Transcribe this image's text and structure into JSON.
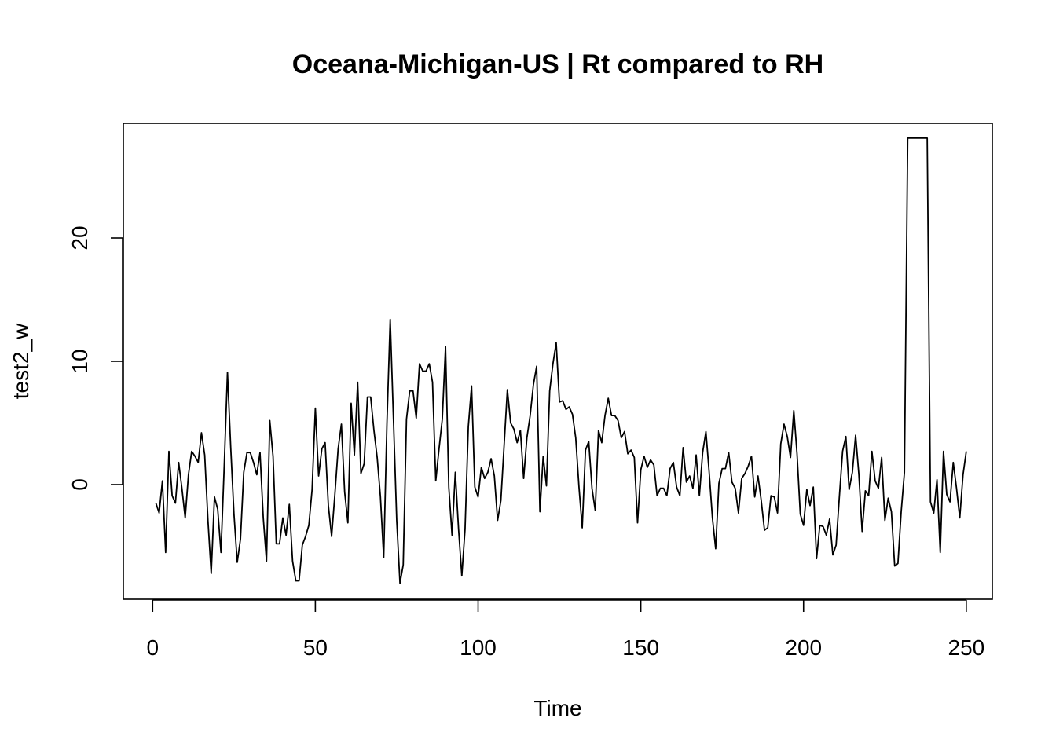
{
  "chart_data": {
    "type": "line",
    "title": "Oceana-Michigan-US | Rt compared to RH",
    "xlabel": "Time",
    "ylabel": "test2_w",
    "xlim": [
      -9,
      258
    ],
    "ylim": [
      -9.3,
      29.3
    ],
    "xticks": [
      0,
      50,
      100,
      150,
      200,
      250
    ],
    "yticks": [
      0,
      10,
      20
    ],
    "grid": false,
    "legend": "none",
    "line_color": "#000000",
    "series": [
      {
        "x_start": 1,
        "values": [
          -1.5,
          -2.3,
          0.3,
          -5.5,
          2.7,
          -0.9,
          -1.5,
          1.8,
          -0.3,
          -2.7,
          0.8,
          2.7,
          2.3,
          1.8,
          4.2,
          2.4,
          -2.9,
          -7.2,
          -1.0,
          -2.0,
          -5.5,
          1.5,
          9.1,
          3.0,
          -2.4,
          -6.3,
          -4.4,
          1.0,
          2.6,
          2.6,
          1.8,
          0.8,
          2.6,
          -2.7,
          -6.2,
          5.2,
          2.3,
          -4.8,
          -4.8,
          -2.7,
          -4.1,
          -1.6,
          -6.2,
          -7.8,
          -7.8,
          -4.9,
          -4.2,
          -3.3,
          -0.4,
          6.2,
          0.7,
          2.9,
          3.4,
          -1.7,
          -4.2,
          -0.8,
          2.9,
          4.9,
          -0.6,
          -3.1,
          6.6,
          2.4,
          8.3,
          0.9,
          1.7,
          7.1,
          7.1,
          4.4,
          2.2,
          -1.0,
          -5.9,
          5.0,
          13.4,
          5.3,
          -2.9,
          -8.0,
          -6.5,
          5.3,
          7.6,
          7.6,
          5.4,
          9.8,
          9.2,
          9.2,
          9.8,
          8.3,
          0.3,
          2.9,
          5.3,
          11.2,
          -0.2,
          -4.1,
          1.0,
          -3.6,
          -7.4,
          -3.6,
          4.7,
          8.0,
          -0.2,
          -1.0,
          1.4,
          0.5,
          1.0,
          2.1,
          0.7,
          -2.9,
          -1.3,
          3.2,
          7.7,
          5.0,
          4.5,
          3.4,
          4.4,
          0.5,
          3.8,
          5.6,
          8.1,
          9.6,
          -2.2,
          2.3,
          -0.1,
          7.6,
          9.8,
          11.5,
          6.7,
          6.8,
          6.1,
          6.3,
          5.7,
          3.8,
          -0.2,
          -3.5,
          2.8,
          3.5,
          -0.3,
          -2.1,
          4.4,
          3.4,
          5.6,
          7.0,
          5.6,
          5.6,
          5.2,
          3.8,
          4.3,
          2.5,
          2.8,
          2.2,
          -3.1,
          1.2,
          2.3,
          1.4,
          2.0,
          1.6,
          -0.9,
          -0.3,
          -0.3,
          -0.9,
          1.3,
          1.8,
          -0.2,
          -0.9,
          3.0,
          0.2,
          0.7,
          -0.3,
          2.4,
          -0.9,
          2.6,
          4.3,
          1.0,
          -2.7,
          -5.2,
          0.1,
          1.3,
          1.3,
          2.6,
          0.2,
          -0.3,
          -2.3,
          0.5,
          0.9,
          1.5,
          2.3,
          -1.0,
          0.7,
          -1.3,
          -3.7,
          -3.5,
          -0.9,
          -1.0,
          -2.3,
          3.3,
          4.9,
          3.9,
          2.2,
          6.0,
          2.5,
          -2.4,
          -3.3,
          -0.4,
          -1.7,
          -0.2,
          -6.0,
          -3.3,
          -3.4,
          -4.1,
          -2.8,
          -5.7,
          -4.9,
          -1.0,
          2.7,
          3.9,
          -0.4,
          1.0,
          4.0,
          0.8,
          -3.8,
          -0.5,
          -0.9,
          2.7,
          0.3,
          -0.3,
          2.2,
          -2.9,
          -1.1,
          -2.2,
          -6.6,
          -6.4,
          -2.2,
          1.0,
          28.1,
          28.1,
          28.1,
          28.1,
          28.1,
          28.1,
          28.1,
          -1.4,
          -2.3,
          0.4,
          -5.5,
          2.7,
          -0.8,
          -1.4,
          1.8,
          -0.3,
          -2.7,
          0.8,
          2.7
        ]
      }
    ]
  }
}
